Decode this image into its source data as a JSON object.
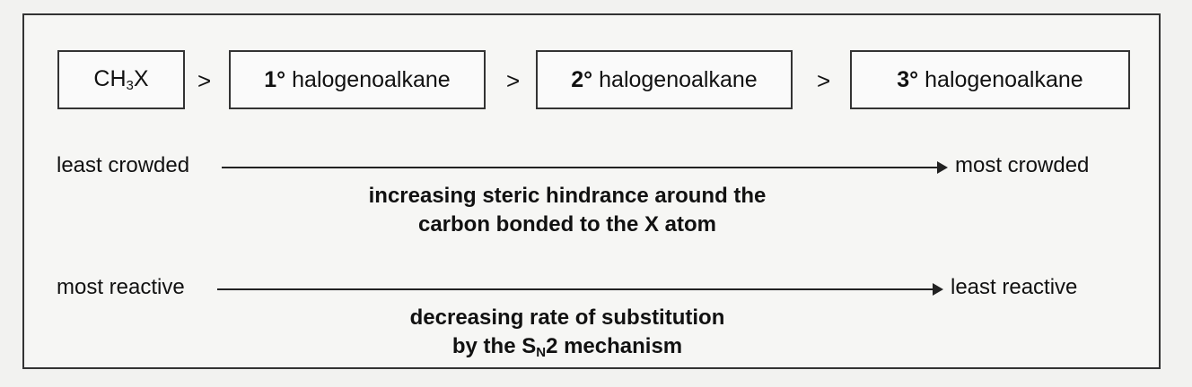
{
  "compounds": [
    {
      "text": "CH",
      "sub": "3",
      "tail": "X"
    },
    {
      "degree": "1°",
      "label": "halogenoalkane"
    },
    {
      "degree": "2°",
      "label": "halogenoalkane"
    },
    {
      "degree": "3°",
      "label": "halogenoalkane"
    }
  ],
  "operator": ">",
  "steric": {
    "left": "least crowded",
    "right": "most crowded",
    "caption_line1": "increasing steric hindrance around the",
    "caption_line2": "carbon bonded to the X atom"
  },
  "reactivity": {
    "left": "most reactive",
    "right": "least reactive",
    "caption_line1": "decreasing rate of substitution",
    "caption_line2_pre": "by the S",
    "caption_line2_sub": "N",
    "caption_line2_post": "2 mechanism"
  }
}
